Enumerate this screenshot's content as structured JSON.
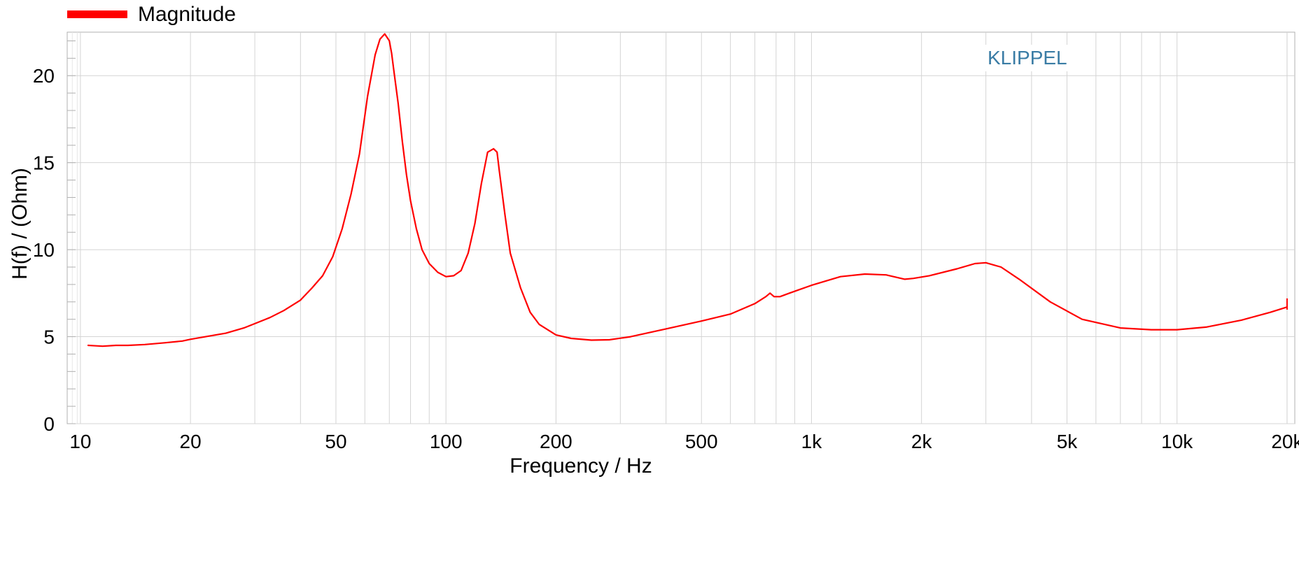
{
  "legend": {
    "label": "Magnitude"
  },
  "watermark": "KLIPPEL",
  "colors": {
    "series": "#ff0000",
    "grid": "#d4d4d4",
    "watermark": "#3a7ca5"
  },
  "chart_data": {
    "type": "line",
    "xlabel": "Frequency / Hz",
    "ylabel": "H(f) / (Ohm)",
    "x_scale": "log",
    "xlim": [
      9.2,
      21000
    ],
    "ylim": [
      0,
      22.5
    ],
    "grid": true,
    "legend_position": "top-left",
    "x_ticks": [
      {
        "value": 10,
        "label": "10"
      },
      {
        "value": 20,
        "label": "20"
      },
      {
        "value": 50,
        "label": "50"
      },
      {
        "value": 100,
        "label": "100"
      },
      {
        "value": 200,
        "label": "200"
      },
      {
        "value": 500,
        "label": "500"
      },
      {
        "value": 1000,
        "label": "1k"
      },
      {
        "value": 2000,
        "label": "2k"
      },
      {
        "value": 5000,
        "label": "5k"
      },
      {
        "value": 10000,
        "label": "10k"
      },
      {
        "value": 20000,
        "label": "20k"
      }
    ],
    "y_ticks": [
      {
        "value": 0,
        "label": "0"
      },
      {
        "value": 5,
        "label": "5"
      },
      {
        "value": 10,
        "label": "10"
      },
      {
        "value": 15,
        "label": "15"
      },
      {
        "value": 20,
        "label": "20"
      }
    ],
    "series": [
      {
        "name": "Magnitude",
        "x": [
          10.5,
          11.5,
          12.5,
          13.5,
          15,
          17,
          19,
          20,
          22,
          25,
          28,
          30,
          33,
          36,
          40,
          43,
          46,
          49,
          52,
          55,
          58,
          61,
          64,
          66,
          68,
          70,
          71,
          72,
          74,
          76,
          78,
          80,
          83,
          86,
          90,
          95,
          100,
          105,
          110,
          115,
          120,
          125,
          130,
          135,
          138,
          140,
          145,
          150,
          160,
          170,
          180,
          200,
          220,
          250,
          280,
          320,
          400,
          500,
          600,
          700,
          750,
          770,
          790,
          820,
          870,
          1000,
          1200,
          1400,
          1600,
          1800,
          1900,
          2100,
          2500,
          2800,
          3000,
          3300,
          3700,
          4500,
          5500,
          7000,
          8500,
          10000,
          12000,
          15000,
          18000,
          20000
        ],
        "values": [
          4.5,
          4.45,
          4.5,
          4.5,
          4.55,
          4.65,
          4.75,
          4.85,
          5.0,
          5.2,
          5.5,
          5.75,
          6.1,
          6.5,
          7.1,
          7.8,
          8.5,
          9.6,
          11.2,
          13.2,
          15.5,
          18.8,
          21.2,
          22.1,
          22.4,
          22.0,
          21.3,
          20.3,
          18.4,
          16.2,
          14.3,
          12.8,
          11.2,
          10.0,
          9.2,
          8.7,
          8.45,
          8.5,
          8.8,
          9.8,
          11.5,
          13.8,
          15.6,
          15.8,
          15.6,
          14.5,
          12.0,
          9.8,
          7.8,
          6.4,
          5.7,
          5.1,
          4.9,
          4.8,
          4.82,
          5.0,
          5.45,
          5.9,
          6.3,
          6.9,
          7.3,
          7.5,
          7.3,
          7.3,
          7.5,
          7.95,
          8.45,
          8.6,
          8.55,
          8.3,
          8.35,
          8.5,
          8.9,
          9.2,
          9.25,
          9.0,
          8.3,
          7.0,
          6.0,
          5.5,
          5.4,
          5.4,
          5.55,
          5.95,
          6.4,
          6.7
        ]
      }
    ]
  }
}
